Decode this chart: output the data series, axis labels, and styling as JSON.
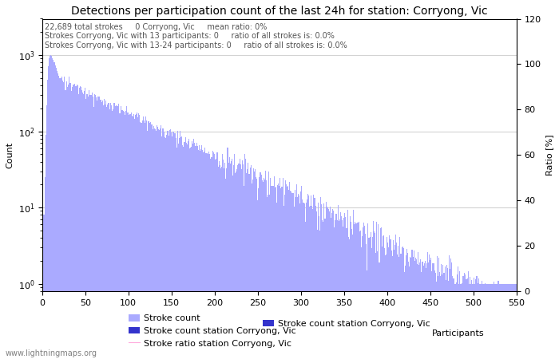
{
  "title": "Detections per participation count of the last 24h for station: Corryong, Vic",
  "annotation_lines": [
    "22,689 total strokes     0 Corryong, Vic     mean ratio: 0%",
    "Strokes Corryong, Vic with 13 participants: 0     ratio of all strokes is: 0.0%",
    "Strokes Corryong, Vic with 13-24 participants: 0     ratio of all strokes is: 0.0%"
  ],
  "xlabel": "Participants",
  "ylabel_left": "Count",
  "ylabel_right": "Ratio [%]",
  "xlim": [
    0,
    550
  ],
  "ylim_right": [
    0,
    120
  ],
  "bar_color_stroke": "#aaaaff",
  "bar_color_station": "#3333cc",
  "line_color_ratio": "#ffaadd",
  "legend_labels": [
    "Stroke count",
    "Stroke count station Corryong, Vic",
    "Stroke ratio station Corryong, Vic"
  ],
  "watermark": "www.lightningmaps.org",
  "title_fontsize": 10,
  "annotation_fontsize": 7,
  "axis_fontsize": 8,
  "legend_fontsize": 8
}
